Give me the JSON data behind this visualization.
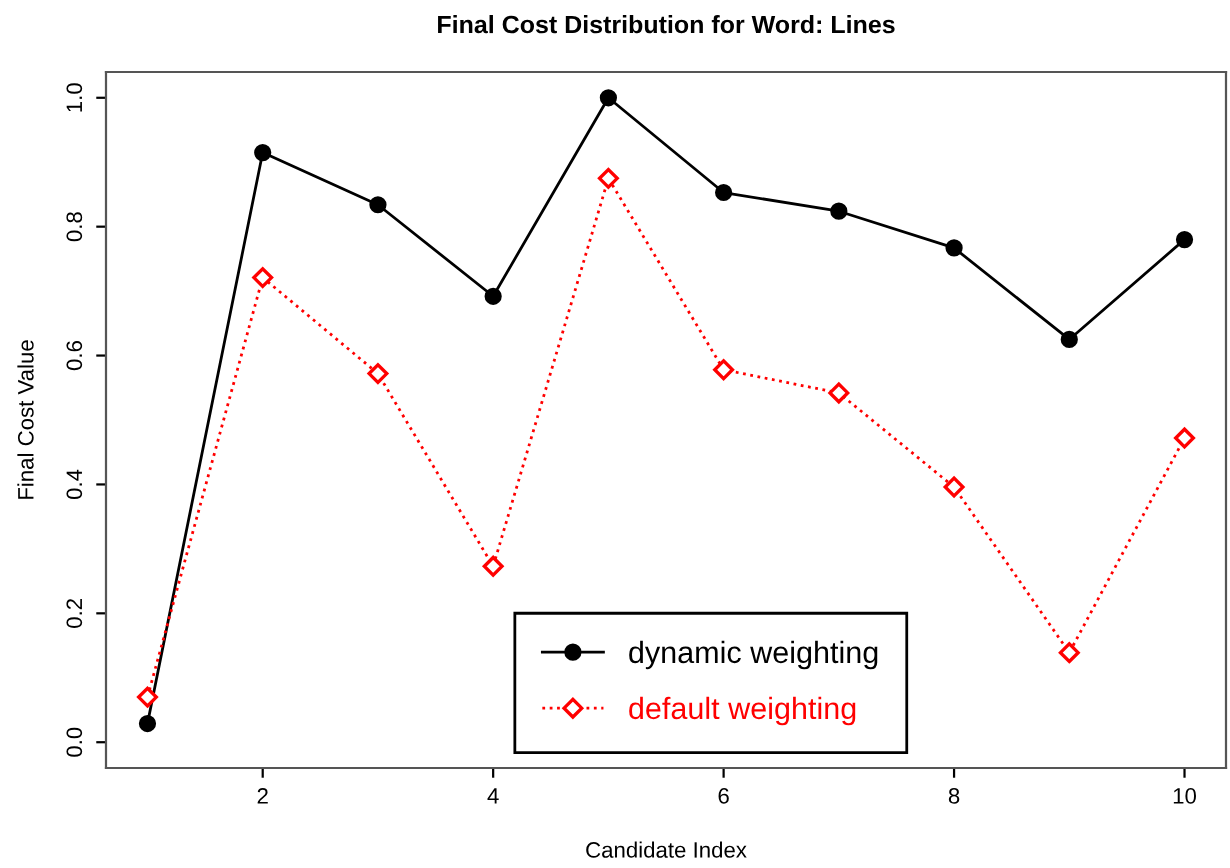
{
  "chart_data": {
    "type": "line",
    "title": "Final Cost Distribution for Word: Lines",
    "xlabel": "Candidate Index",
    "ylabel": "Final Cost Value",
    "x": [
      1,
      2,
      3,
      4,
      5,
      6,
      7,
      8,
      9,
      10
    ],
    "series": [
      {
        "name": "dynamic weighting",
        "color": "#000000",
        "marker": "circle",
        "line_style": "solid",
        "values": [
          0.029,
          0.915,
          0.834,
          0.692,
          1.0,
          0.853,
          0.824,
          0.767,
          0.625,
          0.78
        ]
      },
      {
        "name": "default weighting",
        "color": "#ff0000",
        "marker": "diamond",
        "line_style": "dotted",
        "values": [
          0.07,
          0.721,
          0.572,
          0.273,
          0.875,
          0.578,
          0.542,
          0.396,
          0.139,
          0.472
        ]
      }
    ],
    "xlim": [
      0.64,
      10.36
    ],
    "ylim": [
      -0.04,
      1.04
    ],
    "xticks": [
      2,
      4,
      6,
      8,
      10
    ],
    "yticks": [
      {
        "value": 0,
        "label": "0.0"
      },
      0.2,
      0.4,
      0.6,
      0.8,
      {
        "value": 1,
        "label": "1.0"
      }
    ],
    "grid": false,
    "legend": "bottom"
  }
}
